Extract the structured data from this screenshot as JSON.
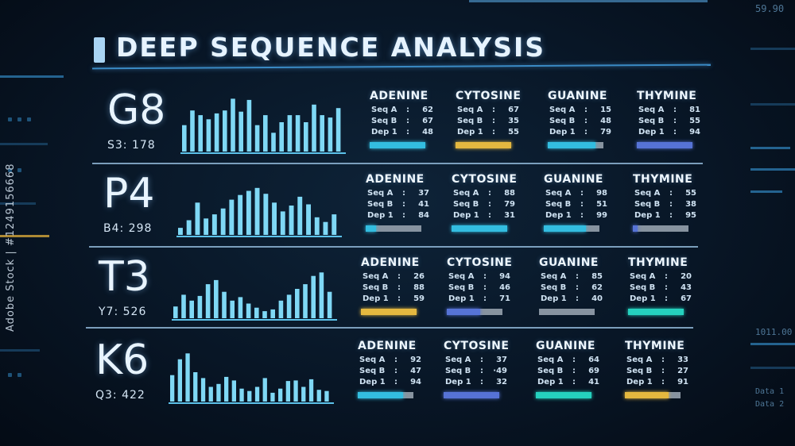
{
  "header": {
    "title": "DEEP SEQUENCE ANALYSIS"
  },
  "side": {
    "vertical_id": "Adobe Stock | #1249156668",
    "right_top": "59.90",
    "right_mid": "1011.00",
    "right_low1": "Data 1",
    "right_low2": "Data 2"
  },
  "colors": {
    "cyan": "#36c6ea",
    "yellow": "#f0c141",
    "blue": "#5b78e0",
    "teal": "#27dcc7",
    "grey": "#8e9aa6"
  },
  "rows": [
    {
      "code": "G8",
      "sub": "S3:  178",
      "bars": [
        0.45,
        0.7,
        0.62,
        0.55,
        0.65,
        0.7,
        0.9,
        0.68,
        0.88,
        0.45,
        0.62,
        0.32,
        0.5,
        0.62,
        0.62,
        0.5,
        0.8,
        0.62,
        0.58,
        0.74
      ],
      "bases": [
        {
          "name": "ADENINE",
          "seq_a": "62",
          "seq_b": "67",
          "dep_1": "48",
          "meter_color": "#36c6ea",
          "meter_level": 1.0
        },
        {
          "name": "CYTOSINE",
          "seq_a": "67",
          "seq_b": "35",
          "dep_1": "55",
          "meter_color": "#f0c141",
          "meter_level": 1.0
        },
        {
          "name": "GUANINE",
          "seq_a": "15",
          "seq_b": "48",
          "dep_1": "79",
          "meter_color": "#36c6ea",
          "meter_level": 0.85
        },
        {
          "name": "THYMINE",
          "seq_a": "81",
          "seq_b": "55",
          "dep_1": "94",
          "meter_color": "#5b78e0",
          "meter_level": 1.0
        }
      ]
    },
    {
      "code": "P4",
      "sub": "B4:  298",
      "bars": [
        0.12,
        0.25,
        0.55,
        0.28,
        0.35,
        0.45,
        0.6,
        0.68,
        0.75,
        0.8,
        0.7,
        0.55,
        0.4,
        0.5,
        0.65,
        0.52,
        0.3,
        0.22,
        0.35
      ],
      "bases": [
        {
          "name": "ADENINE",
          "seq_a": "37",
          "seq_b": "41",
          "dep_1": "84",
          "meter_color": "#36c6ea",
          "meter_level": 0.18
        },
        {
          "name": "CYTOSINE",
          "seq_a": "88",
          "seq_b": "79",
          "dep_1": "31",
          "meter_color": "#36c6ea",
          "meter_level": 1.0
        },
        {
          "name": "GUANINE",
          "seq_a": "98",
          "seq_b": "51",
          "dep_1": "99",
          "meter_color": "#36c6ea",
          "meter_level": 0.75
        },
        {
          "name": "THYMINE",
          "seq_a": "55",
          "seq_b": "38",
          "dep_1": "95",
          "meter_color": "#5b78e0",
          "meter_level": 0.08
        }
      ]
    },
    {
      "code": "T3",
      "sub": "Y7:  526",
      "bars": [
        0.2,
        0.4,
        0.3,
        0.38,
        0.58,
        0.65,
        0.45,
        0.3,
        0.36,
        0.25,
        0.18,
        0.12,
        0.15,
        0.3,
        0.4,
        0.5,
        0.58,
        0.72,
        0.78,
        0.45
      ],
      "bases": [
        {
          "name": "ADENINE",
          "seq_a": "26",
          "seq_b": "88",
          "dep_1": "59",
          "meter_color": "#f0c141",
          "meter_level": 1.0
        },
        {
          "name": "CYTOSINE",
          "seq_a": "94",
          "seq_b": "46",
          "dep_1": "71",
          "meter_color": "#5b78e0",
          "meter_level": 0.6
        },
        {
          "name": "GUANINE",
          "seq_a": "85",
          "seq_b": "62",
          "dep_1": "40",
          "meter_color": "#8e9aa6",
          "meter_level": 0.0
        },
        {
          "name": "THYMINE",
          "seq_a": "20",
          "seq_b": "43",
          "dep_1": "67",
          "meter_color": "#27dcc7",
          "meter_level": 1.0
        }
      ]
    },
    {
      "code": "K6",
      "sub": "Q3:  422",
      "bars": [
        0.45,
        0.72,
        0.82,
        0.5,
        0.4,
        0.25,
        0.3,
        0.42,
        0.36,
        0.22,
        0.18,
        0.25,
        0.4,
        0.15,
        0.22,
        0.35,
        0.36,
        0.25,
        0.38,
        0.2,
        0.18
      ],
      "bases": [
        {
          "name": "ADENINE",
          "seq_a": "92",
          "seq_b": "47",
          "dep_1": "94",
          "meter_color": "#36c6ea",
          "meter_level": 0.82
        },
        {
          "name": "CYTOSINE",
          "seq_a": "37",
          "seq_b": "·49",
          "dep_1": "32",
          "meter_color": "#5b78e0",
          "meter_level": 1.0
        },
        {
          "name": "GUANINE",
          "seq_a": "64",
          "seq_b": "69",
          "dep_1": "41",
          "meter_color": "#27dcc7",
          "meter_level": 1.0
        },
        {
          "name": "THYMINE",
          "seq_a": "33",
          "seq_b": "27",
          "dep_1": "91",
          "meter_color": "#f0c141",
          "meter_level": 0.78
        }
      ]
    }
  ],
  "labels": {
    "seq_a": "Seq A",
    "seq_b": "Seq B",
    "dep_1": "Dep 1",
    "sep": ":"
  }
}
